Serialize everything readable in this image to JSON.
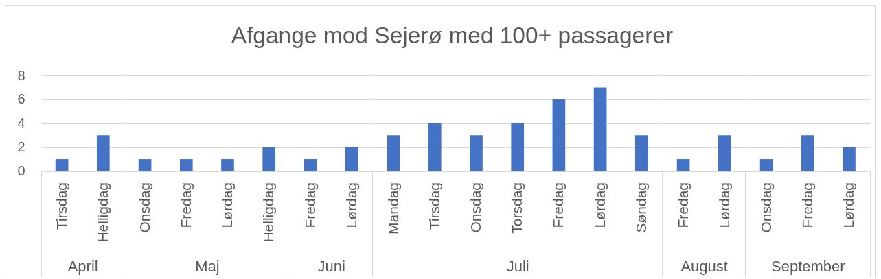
{
  "chart_data": [
    {
      "type": "bar",
      "xlabel": "April",
      "categories": [
        "Tirsdag",
        "Helligdag"
      ],
      "values": [
        1,
        3
      ],
      "color": "#4472c4",
      "ylim": [
        0,
        8
      ],
      "yticks": [
        0,
        2,
        4,
        6,
        8
      ],
      "grid": "y"
    },
    {
      "type": "bar",
      "xlabel": "Maj",
      "categories": [
        "Onsdag",
        "Fredag",
        "Lørdag",
        "Helligdag"
      ],
      "values": [
        1,
        1,
        1,
        2
      ],
      "color": "#4472c4",
      "ylim": [
        0,
        8
      ],
      "yticks": [
        0,
        2,
        4,
        6,
        8
      ],
      "grid": "y",
      "tick_labels": "x"
    },
    {
      "type": "bar",
      "xlabel": "Juni",
      "categories": [
        "Fredag",
        "Lørdag"
      ],
      "values": [
        1,
        2
      ],
      "color": "#4472c4",
      "ylim": [
        0,
        8
      ],
      "yticks": [
        0,
        2,
        4,
        6,
        8
      ],
      "grid": "y",
      "tick_labels": "x"
    },
    {
      "type": "bar",
      "title": "Afgange mod Sejerø med 100+ passagerer",
      "xlabel": "Juli",
      "categories": [
        "Mandag",
        "Tirsdag",
        "Onsdag",
        "Torsdag",
        "Fredag",
        "Lørdag",
        "Søndag"
      ],
      "values": [
        3,
        4,
        3,
        4,
        6,
        7,
        3
      ],
      "color": "#4472c4",
      "ylim": [
        0,
        8
      ],
      "yticks": [
        0,
        2,
        4,
        6,
        8
      ],
      "grid": "y",
      "tick_labels": "x"
    },
    {
      "type": "bar",
      "xlabel": "August",
      "categories": [
        "Fredag",
        "Lørdag"
      ],
      "values": [
        1,
        3
      ],
      "color": "#4472c4",
      "ylim": [
        0,
        8
      ],
      "yticks": [
        0,
        2,
        4,
        6,
        8
      ],
      "grid": "y",
      "tick_labels": "x"
    },
    {
      "type": "bar",
      "xlabel": "September",
      "categories": [
        "Onsdag",
        "Fredag",
        "Lørdag"
      ],
      "values": [
        1,
        3,
        2
      ],
      "color": "#4472c4",
      "ylim": [
        0,
        8
      ],
      "yticks": [
        0,
        2,
        4,
        6,
        8
      ],
      "grid": "y",
      "tick_labels": "x"
    }
  ]
}
